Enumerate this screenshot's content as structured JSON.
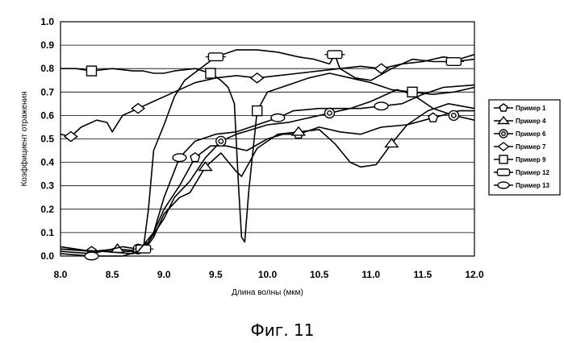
{
  "caption": "Фиг. 11",
  "chart_data": {
    "type": "line",
    "title": "",
    "xlabel": "Длина волны (мкм)",
    "ylabel": "Коэффициент отражения",
    "xlim": [
      8.0,
      12.0
    ],
    "ylim": [
      0.0,
      1.0
    ],
    "x_ticks": [
      "8.0",
      "8.5",
      "9.0",
      "9.5",
      "10.0",
      "10.5",
      "11.0",
      "11.5",
      "12.0"
    ],
    "y_ticks": [
      "0.0",
      "0.1",
      "0.2",
      "0.3",
      "0.4",
      "0.5",
      "0.6",
      "0.7",
      "0.8",
      "0.9",
      "1.0"
    ],
    "grid": "horizontal",
    "legend_position": "right",
    "series": [
      {
        "name": "Пример 1",
        "marker": "pentagon",
        "points": [
          [
            8.0,
            0.04
          ],
          [
            8.3,
            0.02
          ],
          [
            8.6,
            0.02
          ],
          [
            8.8,
            0.02
          ],
          [
            8.9,
            0.1
          ],
          [
            9.0,
            0.2
          ],
          [
            9.15,
            0.3
          ],
          [
            9.3,
            0.42
          ],
          [
            9.45,
            0.47
          ],
          [
            9.6,
            0.47
          ],
          [
            9.8,
            0.45
          ],
          [
            10.0,
            0.5
          ],
          [
            10.15,
            0.52
          ],
          [
            10.3,
            0.52
          ],
          [
            10.5,
            0.55
          ],
          [
            10.7,
            0.53
          ],
          [
            10.9,
            0.52
          ],
          [
            11.1,
            0.55
          ],
          [
            11.35,
            0.56
          ],
          [
            11.6,
            0.59
          ],
          [
            11.85,
            0.62
          ],
          [
            12.0,
            0.62
          ]
        ]
      },
      {
        "name": "Пример 4",
        "marker": "triangle",
        "points": [
          [
            8.0,
            0.03
          ],
          [
            8.3,
            0.02
          ],
          [
            8.55,
            0.03
          ],
          [
            8.8,
            0.02
          ],
          [
            8.9,
            0.08
          ],
          [
            9.0,
            0.18
          ],
          [
            9.15,
            0.25
          ],
          [
            9.25,
            0.27
          ],
          [
            9.4,
            0.38
          ],
          [
            9.55,
            0.44
          ],
          [
            9.7,
            0.36
          ],
          [
            9.75,
            0.34
          ],
          [
            9.9,
            0.46
          ],
          [
            10.1,
            0.52
          ],
          [
            10.3,
            0.53
          ],
          [
            10.5,
            0.54
          ],
          [
            10.65,
            0.48
          ],
          [
            10.8,
            0.4
          ],
          [
            10.9,
            0.38
          ],
          [
            11.05,
            0.39
          ],
          [
            11.2,
            0.48
          ],
          [
            11.35,
            0.56
          ],
          [
            11.55,
            0.62
          ],
          [
            11.75,
            0.65
          ],
          [
            12.0,
            0.63
          ]
        ]
      },
      {
        "name": "Пример 6",
        "marker": "ring",
        "points": [
          [
            8.0,
            0.02
          ],
          [
            8.3,
            0.01
          ],
          [
            8.6,
            0.04
          ],
          [
            8.75,
            0.03
          ],
          [
            8.85,
            0.06
          ],
          [
            9.0,
            0.16
          ],
          [
            9.1,
            0.25
          ],
          [
            9.25,
            0.32
          ],
          [
            9.4,
            0.42
          ],
          [
            9.55,
            0.49
          ],
          [
            9.7,
            0.52
          ],
          [
            9.85,
            0.54
          ],
          [
            10.0,
            0.56
          ],
          [
            10.2,
            0.57
          ],
          [
            10.4,
            0.59
          ],
          [
            10.6,
            0.61
          ],
          [
            10.8,
            0.63
          ],
          [
            11.0,
            0.66
          ],
          [
            11.25,
            0.71
          ],
          [
            11.4,
            0.69
          ],
          [
            11.6,
            0.63
          ],
          [
            11.8,
            0.6
          ],
          [
            12.0,
            0.58
          ]
        ]
      },
      {
        "name": "Пример 7",
        "marker": "diamond",
        "points": [
          [
            8.0,
            0.52
          ],
          [
            8.1,
            0.51
          ],
          [
            8.2,
            0.55
          ],
          [
            8.35,
            0.58
          ],
          [
            8.45,
            0.57
          ],
          [
            8.5,
            0.53
          ],
          [
            8.6,
            0.6
          ],
          [
            8.75,
            0.63
          ],
          [
            8.9,
            0.66
          ],
          [
            9.1,
            0.7
          ],
          [
            9.3,
            0.74
          ],
          [
            9.5,
            0.76
          ],
          [
            9.7,
            0.77
          ],
          [
            9.9,
            0.76
          ],
          [
            10.1,
            0.77
          ],
          [
            10.3,
            0.78
          ],
          [
            10.5,
            0.79
          ],
          [
            10.7,
            0.8
          ],
          [
            10.9,
            0.81
          ],
          [
            11.1,
            0.8
          ],
          [
            11.3,
            0.82
          ],
          [
            11.5,
            0.83
          ],
          [
            11.7,
            0.85
          ],
          [
            11.85,
            0.84
          ],
          [
            12.0,
            0.86
          ]
        ]
      },
      {
        "name": "Пример 9",
        "marker": "square",
        "points": [
          [
            8.0,
            0.8
          ],
          [
            8.15,
            0.8
          ],
          [
            8.3,
            0.79
          ],
          [
            8.5,
            0.8
          ],
          [
            8.7,
            0.79
          ],
          [
            8.8,
            0.79
          ],
          [
            8.9,
            0.78
          ],
          [
            9.0,
            0.78
          ],
          [
            9.1,
            0.79
          ],
          [
            9.3,
            0.8
          ],
          [
            9.45,
            0.78
          ],
          [
            9.55,
            0.75
          ],
          [
            9.62,
            0.72
          ],
          [
            9.68,
            0.65
          ],
          [
            9.72,
            0.3
          ],
          [
            9.75,
            0.08
          ],
          [
            9.78,
            0.06
          ],
          [
            9.82,
            0.28
          ],
          [
            9.9,
            0.62
          ],
          [
            10.0,
            0.7
          ],
          [
            10.2,
            0.73
          ],
          [
            10.4,
            0.76
          ],
          [
            10.6,
            0.78
          ],
          [
            10.8,
            0.76
          ],
          [
            11.0,
            0.74
          ],
          [
            11.2,
            0.71
          ],
          [
            11.4,
            0.7
          ],
          [
            11.6,
            0.69
          ],
          [
            11.8,
            0.7
          ],
          [
            12.0,
            0.72
          ]
        ]
      },
      {
        "name": "Пример 12",
        "marker": "rounded-rect",
        "points": [
          [
            8.0,
            0.03
          ],
          [
            8.4,
            0.02
          ],
          [
            8.7,
            0.01
          ],
          [
            8.8,
            0.03
          ],
          [
            8.85,
            0.2
          ],
          [
            8.9,
            0.45
          ],
          [
            9.0,
            0.56
          ],
          [
            9.1,
            0.68
          ],
          [
            9.2,
            0.75
          ],
          [
            9.35,
            0.8
          ],
          [
            9.5,
            0.85
          ],
          [
            9.7,
            0.88
          ],
          [
            9.9,
            0.88
          ],
          [
            10.1,
            0.87
          ],
          [
            10.3,
            0.85
          ],
          [
            10.45,
            0.84
          ],
          [
            10.6,
            0.82
          ],
          [
            10.65,
            0.86
          ],
          [
            10.7,
            0.8
          ],
          [
            10.85,
            0.76
          ],
          [
            11.0,
            0.75
          ],
          [
            11.2,
            0.8
          ],
          [
            11.4,
            0.84
          ],
          [
            11.6,
            0.83
          ],
          [
            11.8,
            0.83
          ],
          [
            12.0,
            0.84
          ]
        ]
      },
      {
        "name": "Пример 13",
        "marker": "ellipse",
        "points": [
          [
            8.0,
            0.01
          ],
          [
            8.3,
            0.0
          ],
          [
            8.6,
            0.0
          ],
          [
            8.75,
            0.02
          ],
          [
            8.9,
            0.1
          ],
          [
            9.0,
            0.25
          ],
          [
            9.15,
            0.42
          ],
          [
            9.3,
            0.49
          ],
          [
            9.5,
            0.52
          ],
          [
            9.7,
            0.53
          ],
          [
            9.9,
            0.56
          ],
          [
            10.1,
            0.59
          ],
          [
            10.25,
            0.62
          ],
          [
            10.5,
            0.63
          ],
          [
            10.7,
            0.63
          ],
          [
            10.9,
            0.63
          ],
          [
            11.1,
            0.64
          ],
          [
            11.3,
            0.65
          ],
          [
            11.5,
            0.69
          ],
          [
            11.7,
            0.72
          ],
          [
            12.0,
            0.73
          ]
        ]
      }
    ]
  }
}
